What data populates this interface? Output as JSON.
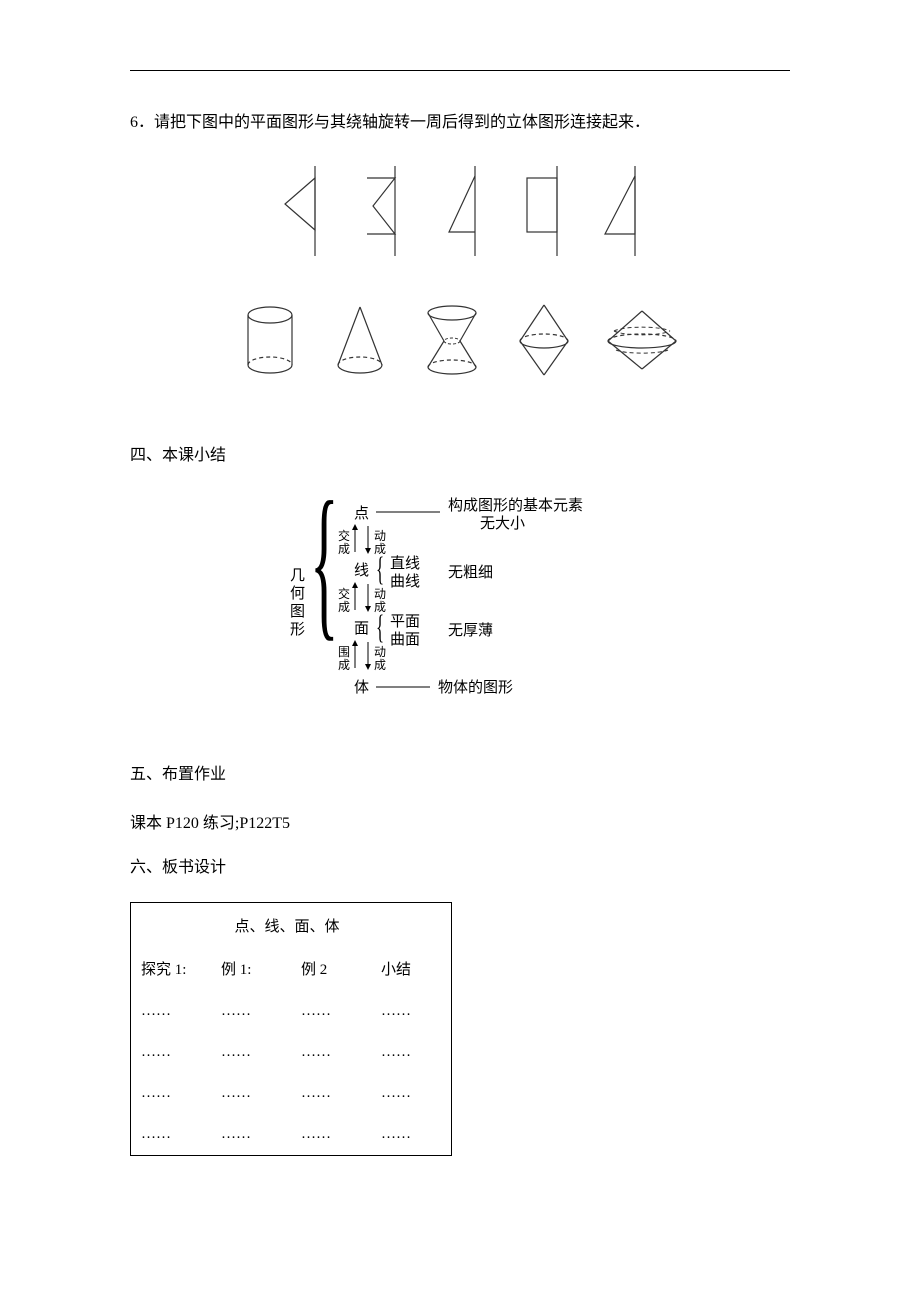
{
  "question": {
    "number": "6．",
    "text": "请把下图中的平面图形与其绕轴旋转一周后得到的立体图形连接起来．"
  },
  "shapes2d": {
    "stroke": "#333333",
    "strokeWidth": 1.2,
    "width": 50,
    "height": 82
  },
  "shapes3d": {
    "stroke": "#333333",
    "dashStroke": "#333333",
    "strokeWidth": 1.2
  },
  "sections": {
    "s4": "四、本课小结",
    "s5": "五、布置作业",
    "s5_body": "课本 P120 练习;P122T5",
    "s6": "六、板书设计"
  },
  "summary": {
    "root": "几何图形",
    "point": "点",
    "point_desc1": "构成图形的基本元素",
    "point_desc2": "无大小",
    "jiao": "交成",
    "dong": "动成",
    "line": "线",
    "line_sub1": "直线",
    "line_sub2": "曲线",
    "line_desc": "无粗细",
    "surface": "面",
    "surface_sub1": "平面",
    "surface_sub2": "曲面",
    "surface_desc": "无厚薄",
    "wei": "围成",
    "body": "体",
    "body_desc": "物体的图形",
    "font_size": 15,
    "color": "#000000"
  },
  "board": {
    "title": "点、线、面、体",
    "headers": [
      "探究 1:",
      "例 1:",
      "例 2",
      "小结"
    ],
    "ellipsis": "……",
    "rows": 4,
    "cols": 4
  }
}
